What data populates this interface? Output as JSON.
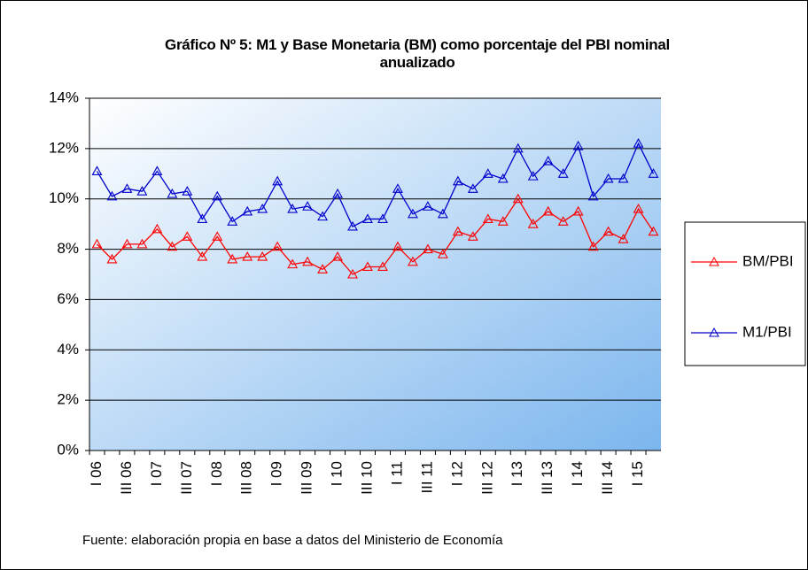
{
  "chart_data": {
    "type": "line",
    "title": "Gráfico Nº 5: M1 y Base Monetaria (BM) como porcentaje del PBI nominal anualizado",
    "note": "Fuente: elaboración propia en base a datos del Ministerio de Economía",
    "categories": [
      "I 06",
      null,
      "III 06",
      null,
      "I 07",
      null,
      "III 07",
      null,
      "I 08",
      null,
      "III 08",
      null,
      "I 09",
      null,
      "III 09",
      null,
      "I 10",
      null,
      "III 10",
      null,
      "I 11",
      null,
      "III 11",
      null,
      "I 12",
      null,
      "III 12",
      null,
      "I 13",
      null,
      "III 13",
      null,
      "I 14",
      null,
      "III 14",
      null,
      "I 15",
      null
    ],
    "series": [
      {
        "name": "BM/PBI",
        "color": "#ff0000",
        "values": [
          8.2,
          7.6,
          8.2,
          8.2,
          8.8,
          8.1,
          8.5,
          7.7,
          8.5,
          7.6,
          7.7,
          7.7,
          8.1,
          7.4,
          7.5,
          7.2,
          7.7,
          7.0,
          7.3,
          7.3,
          8.1,
          7.5,
          8.0,
          7.8,
          8.7,
          8.5,
          9.2,
          9.1,
          10.0,
          9.0,
          9.5,
          9.1,
          9.5,
          8.1,
          8.7,
          8.4,
          9.6,
          8.7
        ]
      },
      {
        "name": "M1/PBI",
        "color": "#0000cc",
        "values": [
          11.1,
          10.1,
          10.4,
          10.3,
          11.1,
          10.2,
          10.3,
          9.2,
          10.1,
          9.1,
          9.5,
          9.6,
          10.7,
          9.6,
          9.7,
          9.3,
          10.2,
          8.9,
          9.2,
          9.2,
          10.4,
          9.4,
          9.7,
          9.4,
          10.7,
          10.4,
          11.0,
          10.8,
          12.0,
          10.9,
          11.5,
          11.0,
          12.1,
          10.1,
          10.8,
          10.8,
          12.2,
          11.0
        ]
      }
    ],
    "ylim": [
      0,
      14
    ],
    "yticks": [
      {
        "value": 0,
        "label": "0%"
      },
      {
        "value": 2,
        "label": "2%"
      },
      {
        "value": 4,
        "label": "4%"
      },
      {
        "value": 6,
        "label": "6%"
      },
      {
        "value": 8,
        "label": "8%"
      },
      {
        "value": 10,
        "label": "10%"
      },
      {
        "value": 12,
        "label": "12%"
      },
      {
        "value": 14,
        "label": "14%"
      }
    ],
    "grid": true,
    "legend": "right"
  }
}
